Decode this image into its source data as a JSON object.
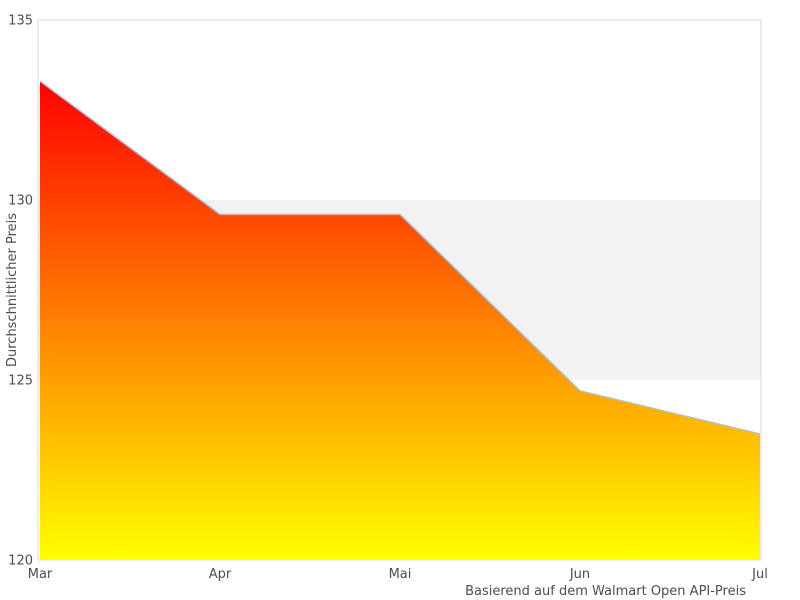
{
  "chart_data": {
    "type": "area",
    "title": "",
    "categories": [
      "Mar",
      "Apr",
      "Mai",
      "Jun",
      "Jul"
    ],
    "series": [
      {
        "name": "Durchschnittlicher Preis",
        "values": [
          133.3,
          129.6,
          129.6,
          124.7,
          123.5
        ]
      }
    ],
    "xlabel": "",
    "ylabel": "Durchschnittlicher Preis",
    "caption": "Basierend auf dem Walmart Open API-Preis",
    "ylim": [
      120,
      135
    ],
    "yticks": [
      120,
      125,
      130,
      135
    ],
    "grid": "off",
    "legend": "none",
    "background_bands": [
      {
        "from": 125,
        "to": 130,
        "color": "#f2f2f2"
      }
    ],
    "colors": {
      "area_gradient_top": "#ff0000",
      "area_gradient_bottom": "#ffff00",
      "line": "#a5c3e0",
      "plot_border": "#d9d9d9",
      "text": "#4d4d4d",
      "background": "#ffffff"
    }
  }
}
